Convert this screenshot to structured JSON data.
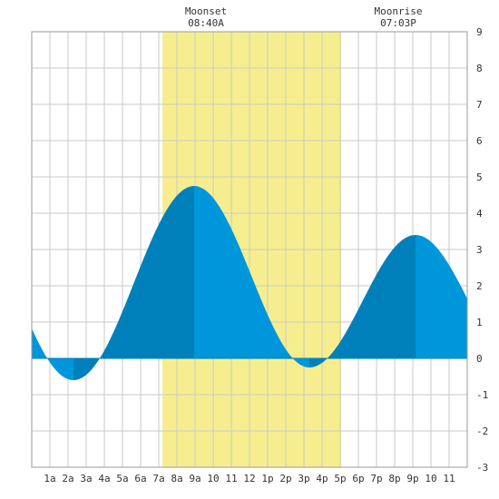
{
  "chart_data": {
    "type": "area",
    "title": "",
    "xlabel": "",
    "ylabel": "",
    "xlim": [
      0,
      24
    ],
    "ylim": [
      -3,
      9
    ],
    "grid": true,
    "x_tick_labels": [
      "1a",
      "2a",
      "3a",
      "4a",
      "5a",
      "6a",
      "7a",
      "8a",
      "9a",
      "10",
      "11",
      "12",
      "1p",
      "2p",
      "3p",
      "4p",
      "5p",
      "6p",
      "7p",
      "8p",
      "9p",
      "10",
      "11"
    ],
    "x_tick_values": [
      1,
      2,
      3,
      4,
      5,
      6,
      7,
      8,
      9,
      10,
      11,
      12,
      13,
      14,
      15,
      16,
      17,
      18,
      19,
      20,
      21,
      22,
      23
    ],
    "y_tick_values": [
      -3,
      -2,
      -1,
      0,
      1,
      2,
      3,
      4,
      5,
      6,
      7,
      8,
      9
    ],
    "y_tick_labels": [
      "-3",
      "-2",
      "-1",
      "0",
      "1",
      "2",
      "3",
      "4",
      "5",
      "6",
      "7",
      "8",
      "9"
    ],
    "extrema": [
      {
        "type": "low",
        "x": 2.3,
        "y": -0.6
      },
      {
        "type": "high",
        "x": 8.95,
        "y": 4.75
      },
      {
        "type": "low",
        "x": 15.3,
        "y": -0.25
      },
      {
        "type": "high",
        "x": 21.15,
        "y": 3.4
      }
    ],
    "start": {
      "x": 0,
      "y": 1.0
    },
    "end": {
      "x": 24,
      "y": 1.8
    },
    "moon_window": {
      "start": 7.2,
      "end": 17.05
    },
    "annotations": [
      {
        "label": "Moonset",
        "time": "08:40A",
        "x": 9.6
      },
      {
        "label": "Moonrise",
        "time": "07:03P",
        "x": 20.2
      }
    ],
    "colors": {
      "fill": "#0096db",
      "fill_dark": "#0080bb",
      "moon_band": "#f6ee8e",
      "grid": "#c9c9c9",
      "frame": "#9a9a9a"
    }
  }
}
